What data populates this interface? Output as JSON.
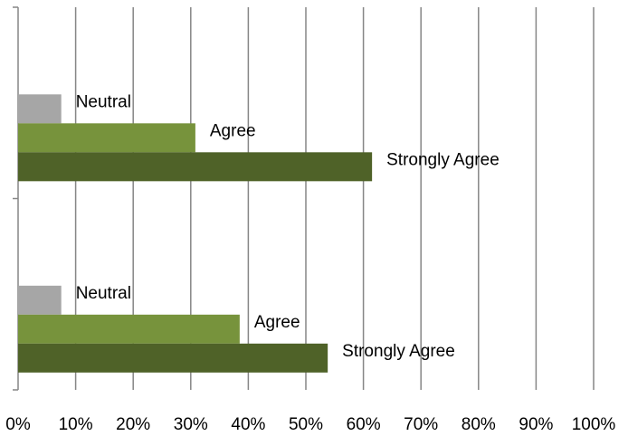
{
  "chart_data": {
    "type": "bar",
    "orientation": "horizontal",
    "title": "",
    "xlabel": "",
    "ylabel": "",
    "xlim": [
      0,
      100
    ],
    "x_ticks": [
      "0%",
      "10%",
      "20%",
      "30%",
      "40%",
      "50%",
      "60%",
      "70%",
      "80%",
      "90%",
      "100%"
    ],
    "grid": "vertical",
    "legend": "none",
    "groups": [
      {
        "bars": [
          {
            "label": "Neutral",
            "value": 7.5,
            "color": "#a6a6a6"
          },
          {
            "label": "Agree",
            "value": 30.8,
            "color": "#77933c"
          },
          {
            "label": "Strongly Agree",
            "value": 61.5,
            "color": "#4f6228"
          }
        ]
      },
      {
        "bars": [
          {
            "label": "Neutral",
            "value": 7.5,
            "color": "#a6a6a6"
          },
          {
            "label": "Agree",
            "value": 38.5,
            "color": "#77933c"
          },
          {
            "label": "Strongly Agree",
            "value": 53.8,
            "color": "#4f6228"
          }
        ]
      }
    ]
  }
}
